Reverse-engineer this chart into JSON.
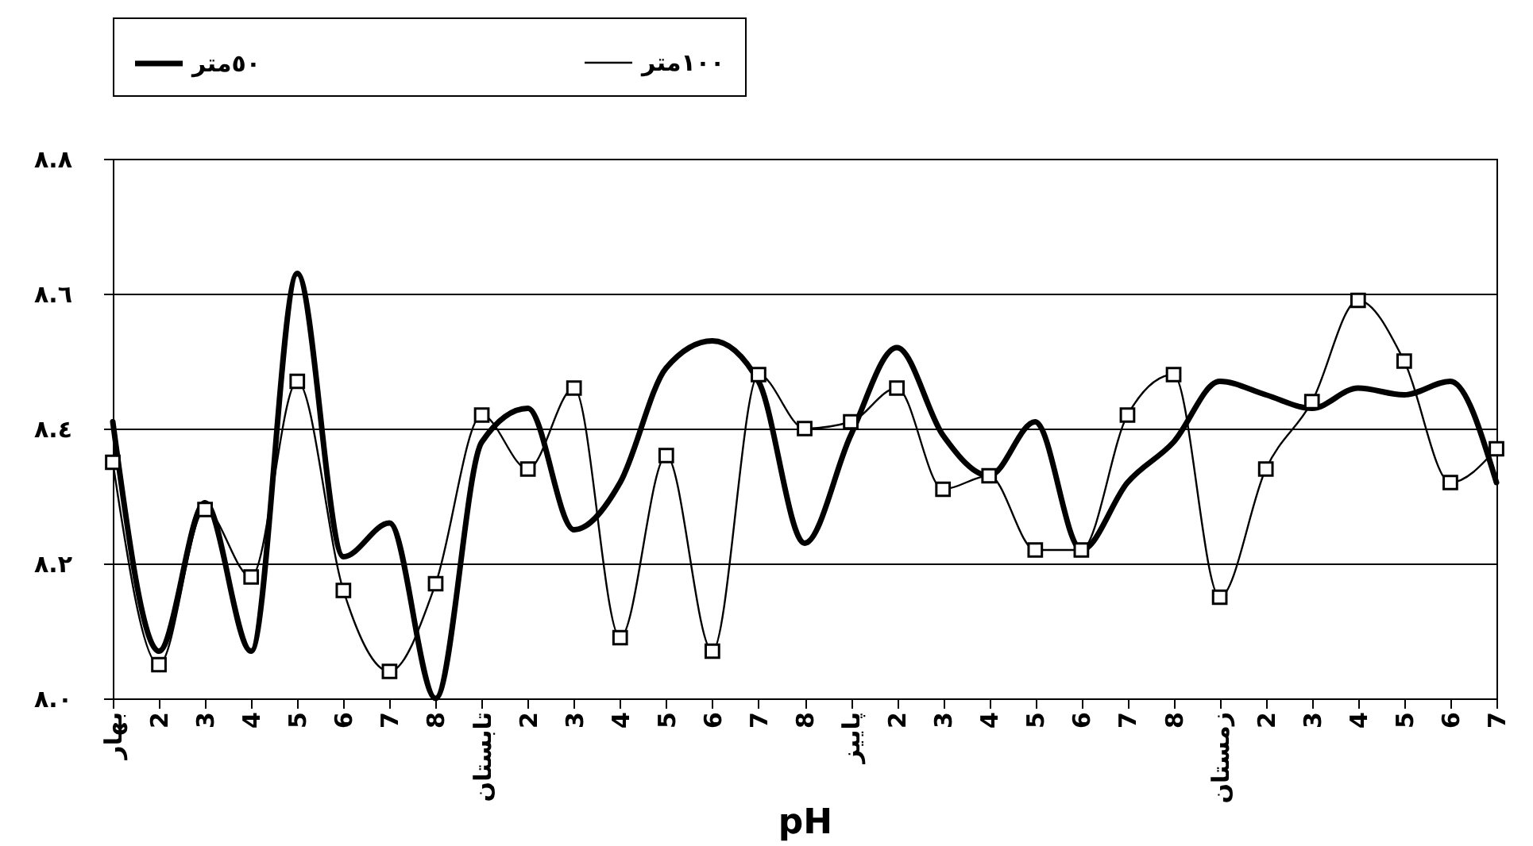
{
  "chart_data": {
    "type": "line",
    "xlabel": "pH",
    "categories": [
      "بهار",
      "2",
      "3",
      "4",
      "5",
      "6",
      "7",
      "8",
      "تابستان",
      "2",
      "3",
      "4",
      "5",
      "6",
      "7",
      "8",
      "پاییز",
      "2",
      "3",
      "4",
      "5",
      "6",
      "7",
      "8",
      "زمستان",
      "2",
      "3",
      "4",
      "5",
      "6",
      "7"
    ],
    "series": [
      {
        "name": "٥٠متر",
        "color": "#000000",
        "marker": "none",
        "values": [
          8.41,
          8.07,
          8.29,
          8.07,
          8.63,
          8.21,
          8.26,
          8.0,
          8.38,
          8.43,
          8.25,
          8.32,
          8.49,
          8.53,
          8.47,
          8.23,
          8.39,
          8.52,
          8.39,
          8.33,
          8.41,
          8.22,
          8.32,
          8.38,
          8.47,
          8.45,
          8.43,
          8.46,
          8.45,
          8.47,
          8.32
        ]
      },
      {
        "name": "١٠٠متر",
        "color": "#000000",
        "marker": "square",
        "values": [
          8.35,
          8.05,
          8.28,
          8.18,
          8.47,
          8.16,
          8.04,
          8.17,
          8.42,
          8.34,
          8.46,
          8.09,
          8.36,
          8.07,
          8.48,
          8.4,
          8.41,
          8.46,
          8.31,
          8.33,
          8.22,
          8.22,
          8.42,
          8.48,
          8.15,
          8.34,
          8.44,
          8.59,
          8.5,
          8.32,
          8.37
        ]
      }
    ],
    "ylim": [
      8.0,
      8.8
    ],
    "yticks": [
      {
        "value": 8.0,
        "label": "٨.٠"
      },
      {
        "value": 8.2,
        "label": "٨.٢"
      },
      {
        "value": 8.4,
        "label": "٨.٤"
      },
      {
        "value": 8.6,
        "label": "٨.٦"
      },
      {
        "value": 8.8,
        "label": "٨.٨"
      }
    ],
    "grid": "y",
    "legend": "top"
  }
}
